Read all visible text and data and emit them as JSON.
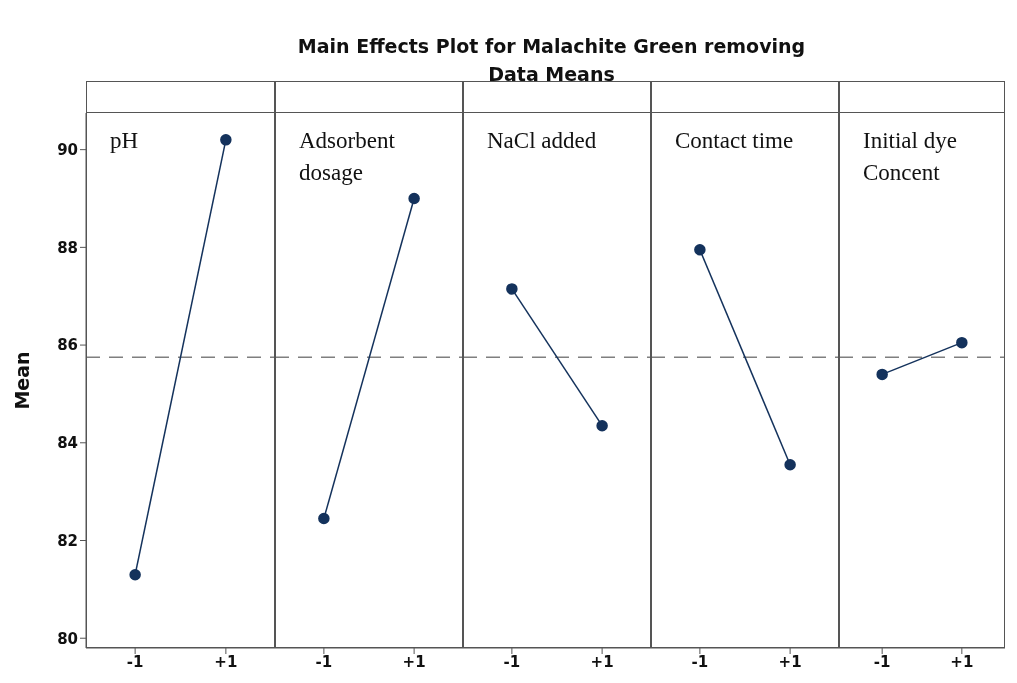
{
  "chart_data": [
    {
      "type": "line",
      "ylabel": "Mean",
      "annotations": [
        "pH"
      ],
      "categories": [
        "-1",
        "+1"
      ],
      "series": [
        {
          "color": "#14325c",
          "values": [
            81.3,
            90.2
          ]
        }
      ],
      "ylim": [
        79.8,
        90.75
      ],
      "yticks": [
        80,
        82,
        84,
        86,
        88,
        90
      ],
      "ref_lines": [
        {
          "axis": "y",
          "value": 85.75,
          "color": "#7f7f7f",
          "line_style": "dashed"
        }
      ],
      "marker": "circle"
    },
    {
      "type": "line",
      "annotations": [
        "Adsorbent dosage"
      ],
      "categories": [
        "-1",
        "+1"
      ],
      "series": [
        {
          "color": "#14325c",
          "values": [
            82.45,
            89.0
          ]
        }
      ],
      "ylim": [
        79.8,
        90.75
      ],
      "yticks": [
        80,
        82,
        84,
        86,
        88,
        90
      ],
      "tick_labels": "x",
      "ref_lines": [
        {
          "axis": "y",
          "value": 85.75,
          "color": "#7f7f7f",
          "line_style": "dashed"
        }
      ],
      "marker": "circle"
    },
    {
      "type": "line",
      "title": "Main Effects Plot for Malachite Green removing",
      "subtitle": "Data Means",
      "annotations": [
        "NaCl added"
      ],
      "categories": [
        "-1",
        "+1"
      ],
      "series": [
        {
          "color": "#14325c",
          "values": [
            87.15,
            84.35
          ]
        }
      ],
      "ylim": [
        79.8,
        90.75
      ],
      "yticks": [
        80,
        82,
        84,
        86,
        88,
        90
      ],
      "tick_labels": "x",
      "ref_lines": [
        {
          "axis": "y",
          "value": 85.75,
          "color": "#7f7f7f",
          "line_style": "dashed"
        }
      ],
      "marker": "circle"
    },
    {
      "type": "line",
      "annotations": [
        "Contact time"
      ],
      "categories": [
        "-1",
        "+1"
      ],
      "series": [
        {
          "color": "#14325c",
          "values": [
            87.95,
            83.55
          ]
        }
      ],
      "ylim": [
        79.8,
        90.75
      ],
      "yticks": [
        80,
        82,
        84,
        86,
        88,
        90
      ],
      "tick_labels": "x",
      "ref_lines": [
        {
          "axis": "y",
          "value": 85.75,
          "color": "#7f7f7f",
          "line_style": "dashed"
        }
      ],
      "marker": "circle"
    },
    {
      "type": "line",
      "annotations": [
        "Initial dye Concent"
      ],
      "categories": [
        "-1",
        "+1"
      ],
      "series": [
        {
          "color": "#14325c",
          "values": [
            85.4,
            86.05
          ]
        }
      ],
      "ylim": [
        79.8,
        90.75
      ],
      "yticks": [
        80,
        82,
        84,
        86,
        88,
        90
      ],
      "tick_labels": "x",
      "ref_lines": [
        {
          "axis": "y",
          "value": 85.75,
          "color": "#7f7f7f",
          "line_style": "dashed"
        }
      ],
      "marker": "circle"
    }
  ]
}
